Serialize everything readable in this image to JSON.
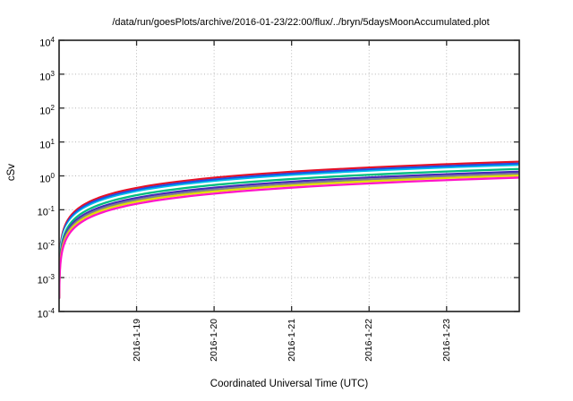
{
  "chart_data": {
    "type": "line",
    "title": "/data/run/goesPlots/archive/2016-01-23/22:00/flux/../bryn/5daysMoonAccumulated.plot",
    "xlabel": "Coordinated Universal Time (UTC)",
    "ylabel": "cSv",
    "x_axis": {
      "kind": "time",
      "tick_labels": [
        "2016-1-19",
        "2016-1-20",
        "2016-1-21",
        "2016-1-22",
        "2016-1-23"
      ],
      "tick_days_from_start": [
        1,
        2,
        3,
        4,
        5
      ],
      "span_days": 5.938,
      "start": "2016-01-18 00:00",
      "end": "2016-01-23 22:30"
    },
    "y_axis": {
      "scale": "log10",
      "tick_exponents": [
        4,
        3,
        2,
        1,
        0,
        -1,
        -2,
        -3,
        -4
      ],
      "ylim": [
        0.0001,
        10000
      ]
    },
    "grid": {
      "show": true,
      "style": "dotted",
      "color": "#b3b3b3"
    },
    "legend": {
      "show": false
    },
    "axis_color": "#2b2b2b",
    "model": "accumulated dose curves: v(t) = final_cSv * t / 5.938 (t = days since plot start), plotted on log y-axis",
    "series": [
      {
        "name": "curve-red",
        "color": "#e51028",
        "final_cSv": 2.62
      },
      {
        "name": "curve-blue",
        "color": "#1a53e8",
        "final_cSv": 2.3
      },
      {
        "name": "curve-cyan",
        "color": "#00bfe8",
        "final_cSv": 2.04
      },
      {
        "name": "curve-white",
        "color": "#ffffff",
        "final_cSv": 1.84
      },
      {
        "name": "curve-green",
        "color": "#00bd7e",
        "final_cSv": 1.6
      },
      {
        "name": "curve-indigo",
        "color": "#4529bb",
        "final_cSv": 1.33
      },
      {
        "name": "curve-gray",
        "color": "#7d7d94",
        "final_cSv": 1.17
      },
      {
        "name": "curve-yellow",
        "color": "#e0df00",
        "final_cSv": 1.03
      },
      {
        "name": "curve-magenta",
        "color": "#ff14c8",
        "final_cSv": 0.89
      }
    ]
  }
}
